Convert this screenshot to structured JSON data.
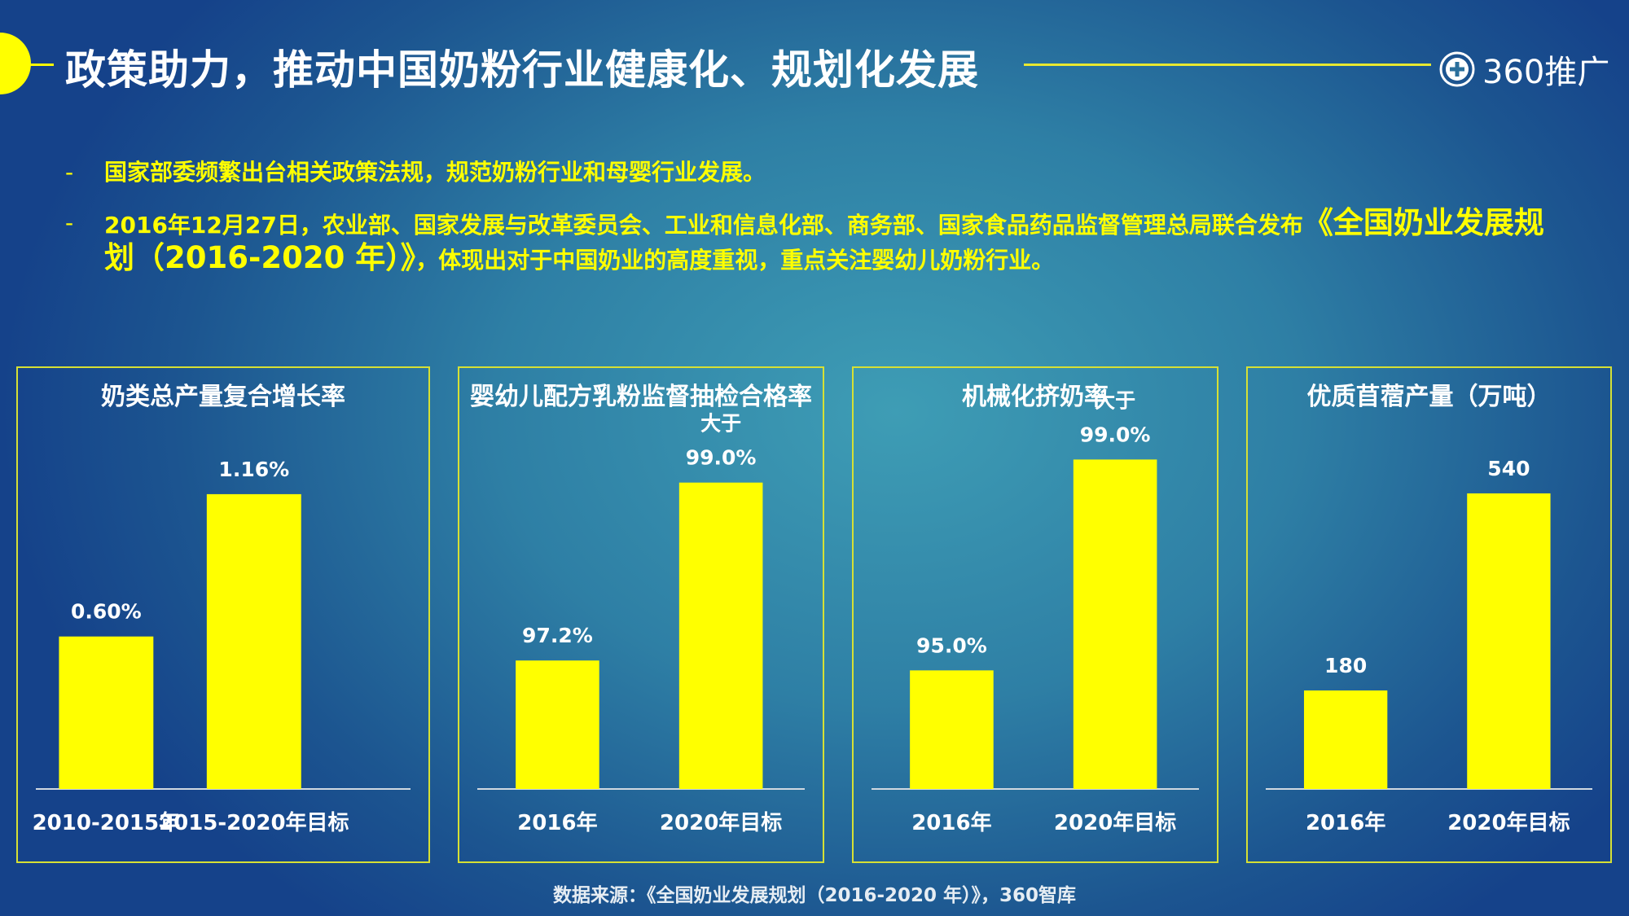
{
  "header": {
    "title": "政策助力，推动中国奶粉行业健康化、规划化发展",
    "logo_text": "360推广",
    "logo_icon": "plus-circle-icon"
  },
  "bullets": [
    {
      "dash": "-",
      "text": "国家部委频繁出台相关政策法规，规范奶粉行业和母婴行业发展。"
    },
    {
      "dash": "-",
      "text_a": "2016年12月27日，农业部、国家发展与改革委员会、工业和信息化部、商务部、国家食品药品监督管理总局联合发布",
      "text_big": "《全国奶业发展规划（2016-2020 年）》",
      "text_b": "，体现出对于中国奶业的高度重视，重点关注婴幼儿奶粉行业。"
    }
  ],
  "colors": {
    "bar": "#ffff00",
    "panel_border": "#d6e034",
    "accent": "#ffff00"
  },
  "chart_data": [
    {
      "type": "bar",
      "title": "奶类总产量复合增长率",
      "categories": [
        "2010-2015年",
        "2015-2020年目标"
      ],
      "values": [
        0.6,
        1.16
      ],
      "labels": [
        "0.60%",
        "1.16%"
      ],
      "prefixes": [
        "",
        ""
      ],
      "ylim": [
        0,
        1.4
      ],
      "xlabel": "",
      "ylabel": ""
    },
    {
      "type": "bar",
      "title": "婴幼儿配方乳粉监督抽检合格率",
      "categories": [
        "2016年",
        "2020年目标"
      ],
      "values": [
        97.2,
        99.0
      ],
      "labels": [
        "97.2%",
        "99.0%"
      ],
      "prefixes": [
        "",
        "大于"
      ],
      "ylim": [
        95.9,
        99.5
      ],
      "xlabel": "",
      "ylabel": ""
    },
    {
      "type": "bar",
      "title": "机械化挤奶率",
      "categories": [
        "2016年",
        "2020年目标"
      ],
      "values": [
        95.0,
        99.0
      ],
      "labels": [
        "95.0%",
        "99.0%"
      ],
      "prefixes": [
        "",
        "大于"
      ],
      "ylim": [
        92.75,
        99.5
      ],
      "xlabel": "",
      "ylabel": ""
    },
    {
      "type": "bar",
      "title": "优质苜蓿产量（万吨）",
      "categories": [
        "2016年",
        "2020年目标"
      ],
      "values": [
        180,
        540
      ],
      "labels": [
        "180",
        "540"
      ],
      "prefixes": [
        "",
        ""
      ],
      "ylim": [
        0,
        650
      ],
      "xlabel": "",
      "ylabel": ""
    }
  ],
  "footer": {
    "source": "数据来源：《全国奶业发展规划（2016-2020 年）》，360智库"
  }
}
